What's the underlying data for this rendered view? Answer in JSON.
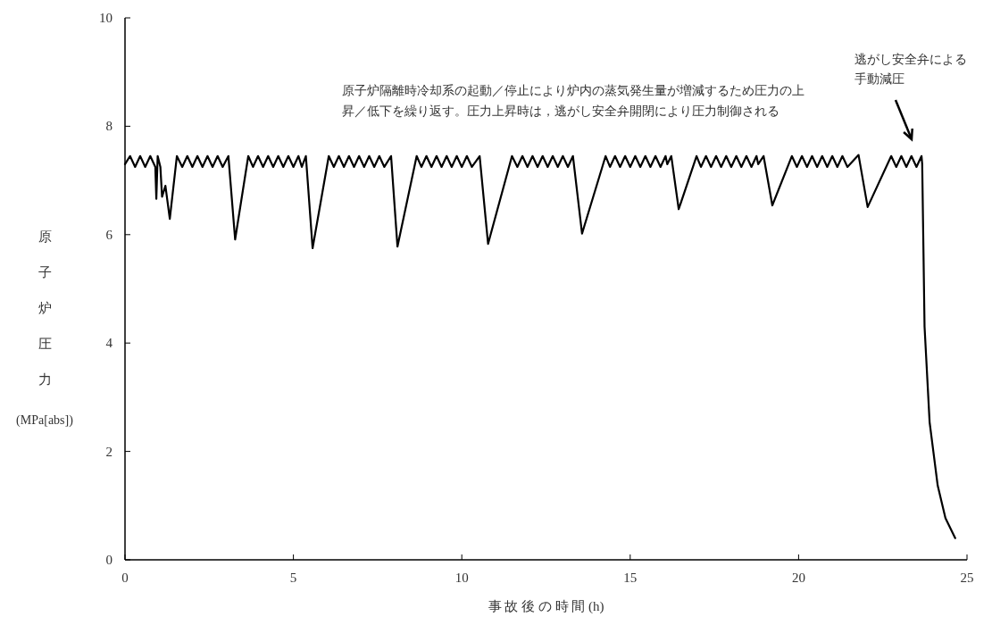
{
  "chart_data": {
    "type": "line",
    "xlabel": "事 故 後 の 時 間 (h)",
    "ylabel": "原子炉圧力(MPa[abs])",
    "xlim": [
      0,
      25
    ],
    "ylim": [
      0,
      10
    ],
    "xticks": [
      0,
      5,
      10,
      15,
      20,
      25
    ],
    "yticks": [
      0,
      2,
      4,
      6,
      8,
      10
    ],
    "annotations": [
      "原子炉隔離時冷却系の起動／停止により炉内の蒸気発生量が増減するため圧力の上昇／低下を繰り返す。圧力上昇時は，逃がし安全弁開閉により圧力制御される",
      "逃がし安全弁による手動減圧"
    ],
    "x": [
      0,
      0.15,
      0.3,
      0.45,
      0.6,
      0.75,
      0.9,
      0.93,
      0.97,
      1.05,
      1.1,
      1.2,
      1.33,
      1.54,
      1.7,
      1.85,
      2.0,
      2.15,
      2.3,
      2.45,
      2.6,
      2.75,
      2.9,
      3.07,
      3.27,
      3.66,
      3.8,
      3.95,
      4.1,
      4.25,
      4.4,
      4.55,
      4.7,
      4.85,
      5.0,
      5.15,
      5.25,
      5.37,
      5.57,
      6.05,
      6.2,
      6.35,
      6.5,
      6.65,
      6.8,
      6.95,
      7.1,
      7.25,
      7.4,
      7.55,
      7.7,
      7.9,
      8.09,
      8.66,
      8.8,
      8.95,
      9.1,
      9.25,
      9.4,
      9.55,
      9.7,
      9.85,
      10.0,
      10.15,
      10.3,
      10.53,
      10.78,
      11.49,
      11.65,
      11.8,
      11.95,
      12.1,
      12.25,
      12.4,
      12.55,
      12.7,
      12.85,
      13.0,
      13.15,
      13.3,
      13.57,
      14.27,
      14.4,
      14.55,
      14.7,
      14.85,
      15.0,
      15.15,
      15.3,
      15.45,
      15.6,
      15.75,
      15.9,
      16.05,
      16.1,
      16.22,
      16.44,
      16.97,
      17.1,
      17.25,
      17.4,
      17.55,
      17.7,
      17.85,
      18.0,
      18.15,
      18.3,
      18.45,
      18.6,
      18.75,
      18.8,
      18.96,
      19.22,
      19.8,
      19.95,
      20.1,
      20.25,
      20.4,
      20.55,
      20.7,
      20.85,
      21.0,
      21.15,
      21.3,
      21.45,
      21.78,
      22.05,
      22.75,
      22.9,
      23.05,
      23.2,
      23.35,
      23.5,
      23.65,
      23.67,
      23.74,
      23.89,
      24.13,
      24.36,
      24.65
    ],
    "series": [
      {
        "color": "#000000",
        "values": [
          7.3,
          7.45,
          7.25,
          7.45,
          7.25,
          7.45,
          7.25,
          6.66,
          7.45,
          7.25,
          6.7,
          6.9,
          6.29,
          7.45,
          7.25,
          7.45,
          7.25,
          7.45,
          7.25,
          7.45,
          7.25,
          7.45,
          7.25,
          7.45,
          5.91,
          7.45,
          7.25,
          7.45,
          7.25,
          7.45,
          7.25,
          7.45,
          7.25,
          7.45,
          7.25,
          7.45,
          7.25,
          7.45,
          5.75,
          7.45,
          7.25,
          7.45,
          7.25,
          7.45,
          7.25,
          7.45,
          7.25,
          7.45,
          7.25,
          7.45,
          7.25,
          7.45,
          5.78,
          7.45,
          7.25,
          7.45,
          7.25,
          7.45,
          7.25,
          7.45,
          7.25,
          7.45,
          7.25,
          7.45,
          7.25,
          7.45,
          5.83,
          7.45,
          7.25,
          7.45,
          7.25,
          7.45,
          7.25,
          7.45,
          7.25,
          7.45,
          7.25,
          7.45,
          7.25,
          7.45,
          6.02,
          7.45,
          7.25,
          7.45,
          7.25,
          7.45,
          7.25,
          7.45,
          7.25,
          7.45,
          7.25,
          7.45,
          7.25,
          7.45,
          7.3,
          7.45,
          6.47,
          7.45,
          7.25,
          7.45,
          7.25,
          7.45,
          7.25,
          7.45,
          7.25,
          7.45,
          7.25,
          7.45,
          7.25,
          7.45,
          7.3,
          7.45,
          6.54,
          7.45,
          7.25,
          7.45,
          7.25,
          7.45,
          7.25,
          7.45,
          7.25,
          7.45,
          7.25,
          7.45,
          7.25,
          7.47,
          6.51,
          7.45,
          7.25,
          7.45,
          7.25,
          7.45,
          7.25,
          7.45,
          7.3,
          4.3,
          2.54,
          1.37,
          0.77,
          0.4
        ]
      }
    ]
  }
}
